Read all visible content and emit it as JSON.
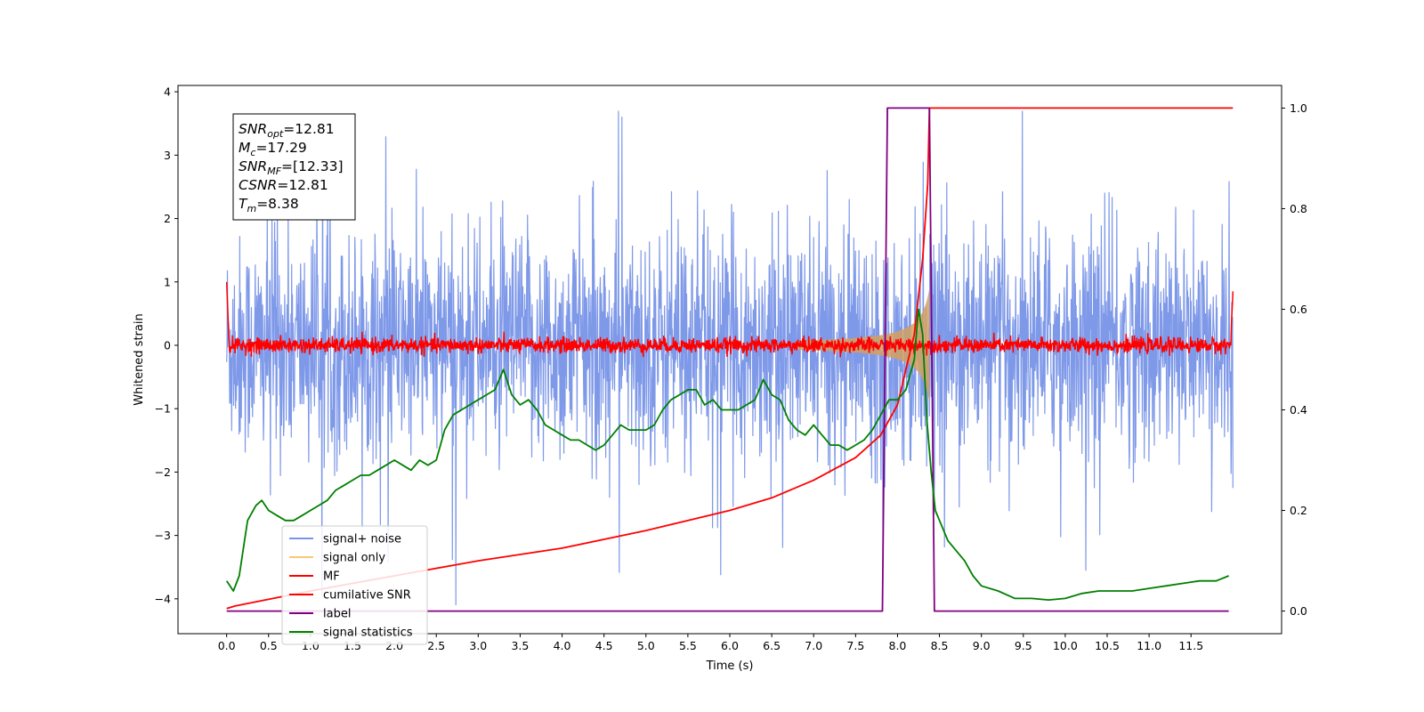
{
  "chart_data": {
    "type": "line",
    "xlabel": "Time (s)",
    "ylabel": "Whitened strain",
    "xlim": [
      -0.58,
      12.58
    ],
    "ylim": [
      -4.55,
      4.1
    ],
    "y2lim": [
      -0.045,
      1.045
    ],
    "xticks": [
      "0.0",
      "0.5",
      "1.0",
      "1.5",
      "2.0",
      "2.5",
      "3.0",
      "3.5",
      "4.0",
      "4.5",
      "5.0",
      "5.5",
      "6.0",
      "6.5",
      "7.0",
      "7.5",
      "8.0",
      "8.5",
      "9.0",
      "9.5",
      "10.0",
      "10.5",
      "11.0",
      "11.5"
    ],
    "yticks": [
      "4",
      "3",
      "2",
      "1",
      "0",
      "−1",
      "−2",
      "−3",
      "−4"
    ],
    "y2ticks": [
      "1.0",
      "0.8",
      "0.6",
      "0.4",
      "0.2",
      "0.0"
    ],
    "annotation": {
      "lines": [
        {
          "var": "SNR",
          "sub": "opt",
          "value": "=12.81"
        },
        {
          "var": "M",
          "sub": "c",
          "value": "=17.29"
        },
        {
          "var": "SNR",
          "sub": "MF",
          "value": "=[12.33]"
        },
        {
          "var": "CSNR",
          "sub": "",
          "value": "=12.81"
        },
        {
          "var": "T",
          "sub": "m",
          "value": "=8.38"
        }
      ]
    },
    "legend": {
      "position": "lower-left",
      "entries": [
        {
          "label": "signal+ noise",
          "color": "#7893e8"
        },
        {
          "label": "signal only",
          "color": "#f5c978"
        },
        {
          "label": "MF",
          "color": "#ff0000"
        },
        {
          "label": "cumilative SNR",
          "color": "#ff0000"
        },
        {
          "label": "label",
          "color": "#800080"
        },
        {
          "label": "signal statistics",
          "color": "#008000"
        }
      ]
    },
    "series": [
      {
        "name": "signal+ noise",
        "color": "#7893e8",
        "axis": "left",
        "description_points": 1200,
        "t_range": [
          0,
          12.0
        ],
        "noise_std": 0.85
      },
      {
        "name": "signal only",
        "color": "#f5c978",
        "axis": "left",
        "chirp_end": 8.38,
        "peak_amplitude": 1.0
      },
      {
        "name": "MF",
        "color": "#ff0000",
        "axis": "left",
        "t_range": [
          0,
          12.0
        ],
        "noise_std": 0.06,
        "edge_values": [
          1.0,
          0.85
        ]
      },
      {
        "name": "cumilative SNR",
        "color": "#ff0000",
        "axis": "right",
        "x": [
          0.0,
          0.1,
          1.0,
          2.0,
          3.0,
          4.0,
          5.0,
          6.0,
          6.5,
          7.0,
          7.5,
          7.8,
          8.0,
          8.2,
          8.3,
          8.36,
          8.38,
          12.0
        ],
        "y": [
          0.005,
          0.01,
          0.04,
          0.07,
          0.1,
          0.125,
          0.16,
          0.2,
          0.225,
          0.26,
          0.305,
          0.35,
          0.41,
          0.55,
          0.7,
          0.85,
          1.0,
          1.0
        ]
      },
      {
        "name": "label",
        "color": "#800080",
        "axis": "right",
        "x": [
          0.0,
          7.82,
          7.88,
          8.38,
          8.44,
          11.95
        ],
        "y": [
          0.0,
          0.0,
          1.0,
          1.0,
          0.0,
          0.0
        ]
      },
      {
        "name": "signal statistics",
        "color": "#008000",
        "axis": "right",
        "x": [
          0.0,
          0.08,
          0.15,
          0.25,
          0.35,
          0.42,
          0.5,
          0.6,
          0.7,
          0.8,
          0.9,
          1.0,
          1.1,
          1.2,
          1.3,
          1.4,
          1.5,
          1.6,
          1.7,
          1.8,
          1.9,
          2.0,
          2.1,
          2.2,
          2.3,
          2.4,
          2.5,
          2.6,
          2.7,
          2.8,
          2.9,
          3.0,
          3.1,
          3.2,
          3.3,
          3.4,
          3.5,
          3.6,
          3.7,
          3.8,
          3.9,
          4.0,
          4.1,
          4.2,
          4.3,
          4.4,
          4.5,
          4.6,
          4.7,
          4.8,
          4.9,
          5.0,
          5.1,
          5.2,
          5.3,
          5.4,
          5.5,
          5.6,
          5.7,
          5.8,
          5.9,
          6.0,
          6.1,
          6.2,
          6.3,
          6.4,
          6.5,
          6.6,
          6.7,
          6.8,
          6.9,
          7.0,
          7.1,
          7.2,
          7.3,
          7.4,
          7.5,
          7.6,
          7.7,
          7.8,
          7.9,
          8.0,
          8.1,
          8.2,
          8.25,
          8.3,
          8.35,
          8.4,
          8.45,
          8.5,
          8.6,
          8.7,
          8.8,
          8.9,
          9.0,
          9.2,
          9.4,
          9.6,
          9.8,
          10.0,
          10.2,
          10.4,
          10.6,
          10.8,
          11.0,
          11.2,
          11.4,
          11.6,
          11.8,
          11.95
        ],
        "y": [
          0.06,
          0.04,
          0.07,
          0.18,
          0.21,
          0.22,
          0.2,
          0.19,
          0.18,
          0.18,
          0.19,
          0.2,
          0.21,
          0.22,
          0.24,
          0.25,
          0.26,
          0.27,
          0.27,
          0.28,
          0.29,
          0.3,
          0.29,
          0.28,
          0.3,
          0.29,
          0.3,
          0.36,
          0.39,
          0.4,
          0.41,
          0.42,
          0.43,
          0.44,
          0.48,
          0.43,
          0.41,
          0.42,
          0.4,
          0.37,
          0.36,
          0.35,
          0.34,
          0.34,
          0.33,
          0.32,
          0.33,
          0.35,
          0.37,
          0.36,
          0.36,
          0.36,
          0.37,
          0.4,
          0.42,
          0.43,
          0.44,
          0.44,
          0.41,
          0.42,
          0.4,
          0.4,
          0.4,
          0.41,
          0.42,
          0.46,
          0.43,
          0.42,
          0.38,
          0.36,
          0.35,
          0.37,
          0.35,
          0.33,
          0.33,
          0.32,
          0.33,
          0.34,
          0.36,
          0.39,
          0.42,
          0.42,
          0.44,
          0.5,
          0.6,
          0.55,
          0.38,
          0.28,
          0.2,
          0.18,
          0.14,
          0.12,
          0.1,
          0.07,
          0.05,
          0.04,
          0.025,
          0.025,
          0.022,
          0.025,
          0.035,
          0.04,
          0.04,
          0.04,
          0.045,
          0.05,
          0.055,
          0.06,
          0.06,
          0.07
        ]
      }
    ]
  }
}
